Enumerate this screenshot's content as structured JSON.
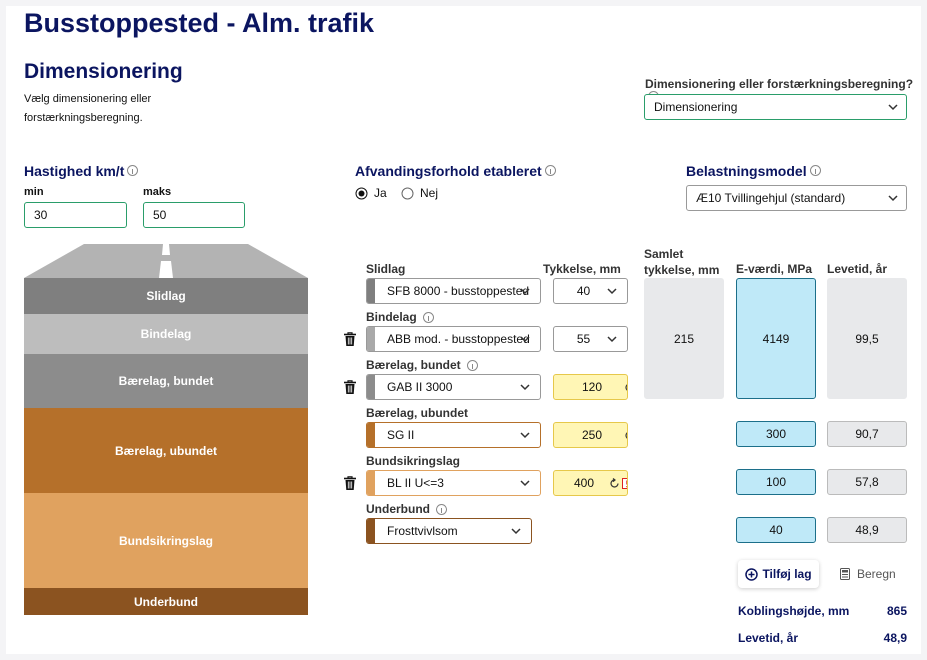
{
  "header": {
    "title": "Busstoppested - Alm. trafik"
  },
  "mode": {
    "heading": "Dimensionering",
    "description": "Vælg dimensionering eller forstærkningsberegning.",
    "select_label": "Dimensionering eller forstærkningsberegning?",
    "select_value": "Dimensionering"
  },
  "speed": {
    "label": "Hastighed km/t",
    "min_label": "min",
    "min": "30",
    "max_label": "maks",
    "max": "50"
  },
  "drainage": {
    "label": "Afvandingsforhold etableret",
    "options": [
      "Ja",
      "Nej"
    ]
  },
  "load": {
    "label": "Belastningsmodel",
    "value": "Æ10 Tvillingehjul (standard)"
  },
  "diagram": {
    "layers": [
      "Slidlag",
      "Bindelag",
      "Bærelag, bundet",
      "Bærelag, ubundet",
      "Bundsikringslag",
      "Underbund"
    ]
  },
  "table": {
    "headers": {
      "thickness": "Tykkelse, mm",
      "total": "Samlet tykkelse, mm",
      "e_value": "E-værdi, MPa",
      "lifetime": "Levetid, år"
    },
    "rows": [
      {
        "layer": "Slidlag",
        "material": "SFB 8000 - busstoppested",
        "thickness": "40"
      },
      {
        "layer": "Bindelag",
        "material": "ABB mod. - busstoppested",
        "thickness": "55"
      },
      {
        "layer": "Bærelag, bundet",
        "material": "GAB II 3000",
        "thickness": "120"
      },
      {
        "layer": "Bærelag, ubundet",
        "material": "SG II",
        "thickness": "250",
        "e_value": "300",
        "lifetime": "90,7"
      },
      {
        "layer": "Bundsikringslag",
        "material": "BL II U<=3",
        "thickness": "400",
        "e_value": "100",
        "lifetime": "57,8"
      },
      {
        "layer": "Underbund",
        "material": "Frosttvivlsom",
        "e_value": "40",
        "lifetime": "48,9"
      }
    ],
    "bound_summary": {
      "total": "215",
      "e_value": "4149",
      "lifetime": "99,5"
    }
  },
  "actions": {
    "add": "Tilføj lag",
    "calculate": "Beregn"
  },
  "results": [
    {
      "label": "Koblingshøjde, mm",
      "value": "865"
    },
    {
      "label": "Levetid, år",
      "value": "48,9"
    }
  ]
}
